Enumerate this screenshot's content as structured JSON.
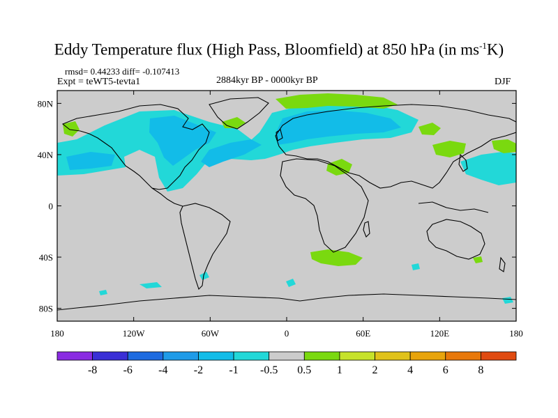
{
  "title": {
    "main": "Eddy Temperature flux (High Pass, Bloomfield) at 850 hPa (in ms",
    "sup": "-1",
    "end": "K)"
  },
  "stats": {
    "line1": "rmsd= 0.44233 diff= -0.107413",
    "expt": "Expt = teWT5-tevta1"
  },
  "period": "2884kyr BP - 0000kyr BP",
  "season": "DJF",
  "axes": {
    "lon_ticks": [
      "180",
      "120W",
      "60W",
      "0",
      "60E",
      "120E",
      "180"
    ],
    "lat_ticks": [
      "80N",
      "40N",
      "0",
      "40S",
      "80S"
    ]
  },
  "colorbar": {
    "labels": [
      "-8",
      "-6",
      "-4",
      "-2",
      "-1",
      "-0.5",
      "0.5",
      "1",
      "2",
      "4",
      "6",
      "8"
    ],
    "colors": [
      "#8a2be2",
      "#3a2fd6",
      "#1e6be0",
      "#1f9be8",
      "#12bce8",
      "#22d8d8",
      "#cccccc",
      "#7ad90f",
      "#c6e22a",
      "#e0c21a",
      "#e8a40c",
      "#e8780a",
      "#e04a10"
    ]
  },
  "colors": {
    "ocean": "#cccccc",
    "coast": "#000000"
  }
}
